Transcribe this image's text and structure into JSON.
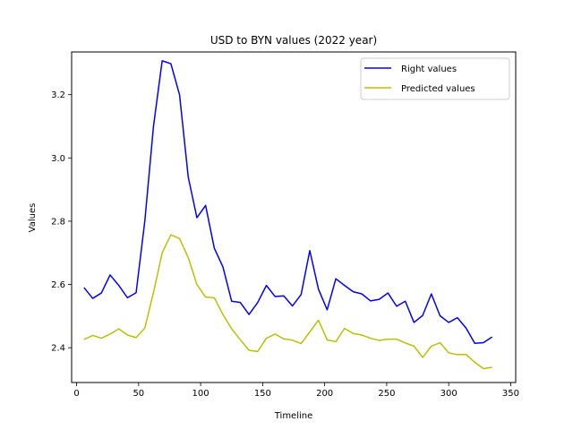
{
  "chart_data": {
    "type": "line",
    "title": "USD to BYN values (2022 year)",
    "xlabel": "Timeline",
    "ylabel": "Values",
    "xlim": [
      -4,
      354
    ],
    "ylim": [
      2.29,
      3.335
    ],
    "xticks": [
      0,
      50,
      100,
      150,
      200,
      250,
      300,
      350
    ],
    "yticks": [
      2.4,
      2.6,
      2.8,
      3.0,
      3.2
    ],
    "ytick_labels": [
      "2.4",
      "2.6",
      "2.8",
      "3.0",
      "3.2"
    ],
    "legend_position": "upper right",
    "grid": false,
    "x": [
      6,
      13,
      20,
      27,
      34,
      41,
      48,
      55,
      62,
      69,
      76,
      83,
      90,
      97,
      104,
      111,
      118,
      125,
      132,
      139,
      146,
      153,
      160,
      167,
      174,
      181,
      188,
      195,
      202,
      209,
      216,
      223,
      230,
      237,
      244,
      251,
      258,
      265,
      272,
      279,
      286,
      293,
      300,
      307,
      314,
      321,
      328,
      335
    ],
    "series": [
      {
        "name": "Right values",
        "color": "#0000ff",
        "values": [
          2.59,
          2.556,
          2.573,
          2.63,
          2.597,
          2.558,
          2.574,
          2.8,
          3.1,
          3.307,
          3.298,
          3.2,
          2.94,
          2.811,
          2.85,
          2.715,
          2.655,
          2.547,
          2.543,
          2.505,
          2.543,
          2.597,
          2.562,
          2.564,
          2.532,
          2.568,
          2.707,
          2.585,
          2.52,
          2.618,
          2.597,
          2.577,
          2.57,
          2.548,
          2.553,
          2.573,
          2.531,
          2.547,
          2.48,
          2.502,
          2.57,
          2.501,
          2.48,
          2.495,
          2.462,
          2.414,
          2.416,
          2.434
        ]
      },
      {
        "name": "Predicted values",
        "color": "#bfbf00",
        "values": [
          2.426,
          2.439,
          2.43,
          2.443,
          2.46,
          2.44,
          2.432,
          2.462,
          2.575,
          2.7,
          2.757,
          2.745,
          2.685,
          2.6,
          2.56,
          2.558,
          2.505,
          2.46,
          2.425,
          2.392,
          2.388,
          2.43,
          2.443,
          2.428,
          2.424,
          2.413,
          2.45,
          2.487,
          2.425,
          2.419,
          2.461,
          2.445,
          2.44,
          2.43,
          2.423,
          2.427,
          2.427,
          2.415,
          2.405,
          2.369,
          2.405,
          2.416,
          2.384,
          2.378,
          2.379,
          2.354,
          2.334,
          2.338
        ]
      }
    ]
  }
}
